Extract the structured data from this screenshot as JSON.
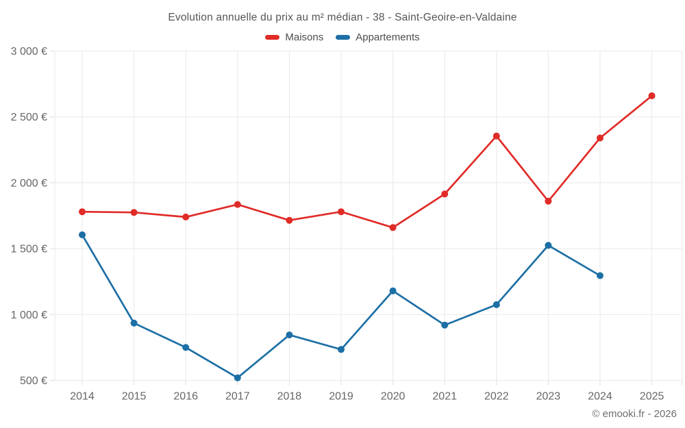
{
  "title": "Evolution annuelle du prix au m² médian - 38 - Saint-Geoire-en-Valdaine",
  "footer": {
    "copyright": "© emooki.fr - 2026"
  },
  "chart_data": {
    "type": "line",
    "title": "Evolution annuelle du prix au m² médian - 38 - Saint-Geoire-en-Valdaine",
    "x": [
      "2014",
      "2015",
      "2016",
      "2017",
      "2018",
      "2019",
      "2020",
      "2021",
      "2022",
      "2023",
      "2024",
      "2025"
    ],
    "series": [
      {
        "name": "Maisons",
        "color": "#e02b27",
        "values": [
          1780,
          1775,
          1740,
          1835,
          1715,
          1780,
          1660,
          1915,
          2355,
          1860,
          2340,
          2660
        ]
      },
      {
        "name": "Appartements",
        "color": "#1d6fa5",
        "values": [
          1605,
          935,
          750,
          520,
          845,
          735,
          1180,
          920,
          1075,
          1525,
          1295,
          null
        ]
      }
    ],
    "ylim": [
      500,
      3000
    ],
    "ytick_values": [
      500,
      1000,
      1500,
      2000,
      2500,
      3000
    ],
    "ytick_labels": [
      "500 €",
      "1 000 €",
      "1 500 €",
      "2 000 €",
      "2 500 €",
      "3 000 €"
    ],
    "grid": true,
    "legend_position": "top",
    "marker": "circle"
  }
}
